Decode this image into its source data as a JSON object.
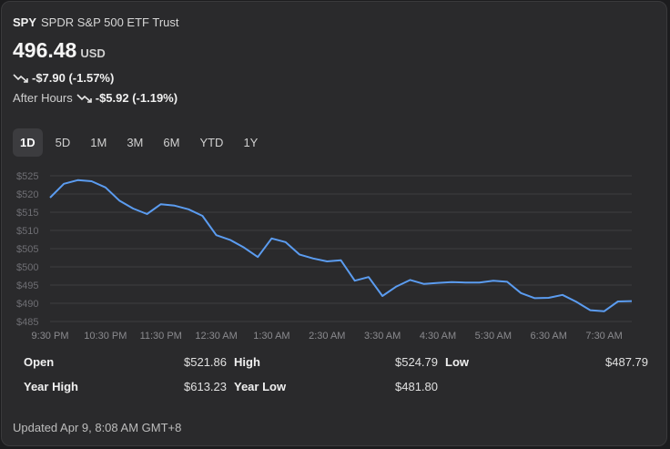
{
  "header": {
    "symbol": "SPY",
    "name": "SPDR S&P 500 ETF Trust"
  },
  "price": {
    "value": "496.48",
    "currency": "USD"
  },
  "change": {
    "text": "-$7.90 (-1.57%)",
    "direction": "down"
  },
  "after_hours": {
    "label": "After Hours",
    "text": "-$5.92 (-1.19%)",
    "direction": "down"
  },
  "tabs": [
    {
      "label": "1D",
      "active": true
    },
    {
      "label": "5D",
      "active": false
    },
    {
      "label": "1M",
      "active": false
    },
    {
      "label": "3M",
      "active": false
    },
    {
      "label": "6M",
      "active": false
    },
    {
      "label": "YTD",
      "active": false
    },
    {
      "label": "1Y",
      "active": false
    }
  ],
  "stats": {
    "open_label": "Open",
    "open": "$521.86",
    "high_label": "High",
    "high": "$524.79",
    "low_label": "Low",
    "low": "$487.79",
    "year_high_label": "Year High",
    "year_high": "$613.23",
    "year_low_label": "Year Low",
    "year_low": "$481.80"
  },
  "footer": {
    "updated": "Updated Apr 9, 8:08 AM GMT+8"
  },
  "colors": {
    "line": "#5b9cf0",
    "background": "#2a2a2c",
    "grid": "#3d3d40"
  },
  "chart_data": {
    "type": "line",
    "ylim": [
      485,
      525
    ],
    "yticks": [
      "$525",
      "$520",
      "$515",
      "$510",
      "$505",
      "$500",
      "$495",
      "$490",
      "$485"
    ],
    "xticks": [
      "9:30 PM",
      "10:30 PM",
      "11:30 PM",
      "12:30 AM",
      "1:30 AM",
      "2:30 AM",
      "3:30 AM",
      "4:30 AM",
      "5:30 AM",
      "6:30 AM",
      "7:30 AM"
    ],
    "x_hours_range": [
      0,
      10.5
    ],
    "grid": true,
    "series": [
      {
        "x": [
          0,
          0.25,
          0.5,
          0.75,
          1,
          1.25,
          1.5,
          1.75,
          2,
          2.25,
          2.5,
          2.75,
          3,
          3.25,
          3.5,
          3.75,
          4,
          4.25,
          4.5,
          4.75,
          5,
          5.25,
          5.5,
          5.75,
          6,
          6.25,
          6.5,
          6.75,
          7,
          7.25,
          7.5,
          7.75,
          8,
          8.25,
          8.5,
          8.75,
          9,
          9.25,
          9.5,
          9.75,
          10,
          10.25,
          10.5
        ],
        "values": [
          519.0,
          522.8,
          523.8,
          523.5,
          521.8,
          518.2,
          516.0,
          514.5,
          517.2,
          516.8,
          515.8,
          514.0,
          508.7,
          507.4,
          505.3,
          502.7,
          507.8,
          506.8,
          503.4,
          502.3,
          501.5,
          501.8,
          496.2,
          497.2,
          492.0,
          494.6,
          496.4,
          495.3,
          495.6,
          495.8,
          495.7,
          495.7,
          496.2,
          495.9,
          492.8,
          491.4,
          491.5,
          492.3,
          490.4,
          488.1,
          487.8,
          490.5,
          490.6
        ]
      }
    ]
  }
}
